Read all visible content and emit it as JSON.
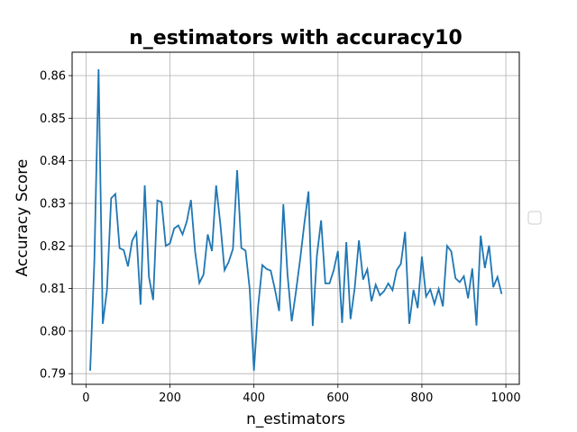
{
  "chart_data": {
    "type": "line",
    "title": "n_estimators with accuracy10",
    "xlabel": "n_estimators",
    "ylabel": "Accuracy Score",
    "xlim": [
      -33,
      1032
    ],
    "ylim": [
      0.7875,
      0.8655
    ],
    "xticks": [
      0,
      200,
      400,
      600,
      800,
      1000
    ],
    "yticks": [
      0.79,
      0.8,
      0.81,
      0.82,
      0.83,
      0.84,
      0.85,
      0.86
    ],
    "xtick_labels": [
      "0",
      "200",
      "400",
      "600",
      "800",
      "1000"
    ],
    "ytick_labels": [
      "0.79",
      "0.80",
      "0.81",
      "0.82",
      "0.83",
      "0.84",
      "0.85",
      "0.86"
    ],
    "grid": true,
    "legend": "right, empty",
    "line_color": "#1f77b4",
    "series": [
      {
        "x": [
          10,
          20,
          30,
          40,
          50,
          60,
          70,
          80,
          90,
          100,
          110,
          120,
          130,
          140,
          150,
          160,
          170,
          180,
          190,
          200,
          210,
          220,
          230,
          240,
          250,
          260,
          270,
          280,
          290,
          300,
          310,
          320,
          330,
          340,
          350,
          360,
          370,
          380,
          390,
          400,
          410,
          420,
          430,
          440,
          450,
          460,
          470,
          480,
          490,
          500,
          510,
          520,
          530,
          540,
          550,
          560,
          570,
          580,
          590,
          600,
          610,
          620,
          630,
          640,
          650,
          660,
          670,
          680,
          690,
          700,
          710,
          720,
          730,
          740,
          750,
          760,
          770,
          780,
          790,
          800,
          810,
          820,
          830,
          840,
          850,
          860,
          870,
          880,
          890,
          900,
          910,
          920,
          930,
          940,
          950,
          960,
          970,
          980,
          990
        ],
        "y": [
          0.7907,
          0.8165,
          0.8615,
          0.8017,
          0.8097,
          0.8312,
          0.8322,
          0.8195,
          0.819,
          0.8152,
          0.8212,
          0.8231,
          0.8062,
          0.8342,
          0.8127,
          0.8073,
          0.8307,
          0.8303,
          0.82,
          0.8206,
          0.8241,
          0.8248,
          0.8227,
          0.8257,
          0.8308,
          0.8186,
          0.8113,
          0.8133,
          0.8227,
          0.8188,
          0.8342,
          0.8252,
          0.8143,
          0.8163,
          0.8193,
          0.8378,
          0.8195,
          0.8189,
          0.8098,
          0.7907,
          0.8058,
          0.8155,
          0.8146,
          0.8142,
          0.8098,
          0.8047,
          0.8298,
          0.8133,
          0.8023,
          0.8092,
          0.8168,
          0.8252,
          0.8328,
          0.8012,
          0.8177,
          0.826,
          0.8112,
          0.8112,
          0.8143,
          0.8188,
          0.8019,
          0.8209,
          0.8028,
          0.8101,
          0.8213,
          0.8121,
          0.8145,
          0.807,
          0.8109,
          0.8084,
          0.8094,
          0.8112,
          0.8096,
          0.8143,
          0.8158,
          0.8233,
          0.8017,
          0.8097,
          0.8054,
          0.8175,
          0.8081,
          0.8098,
          0.8064,
          0.8099,
          0.8058,
          0.82,
          0.8187,
          0.8124,
          0.8115,
          0.8129,
          0.8077,
          0.8147,
          0.8013,
          0.8224,
          0.8148,
          0.8201,
          0.8103,
          0.8127,
          0.8087
        ]
      }
    ]
  }
}
